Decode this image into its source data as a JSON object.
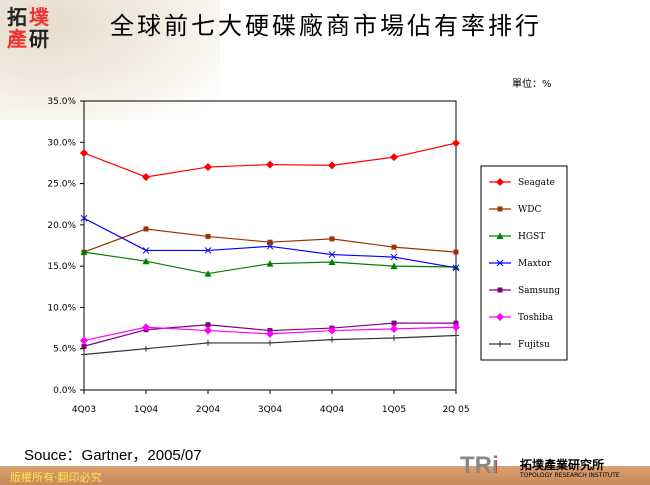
{
  "header": {
    "title": "全球前七大硬碟廠商市場佔有率排行",
    "unit": "單位：%",
    "logo": "拓墣產研"
  },
  "footer": {
    "source": "Souce：Gartner，2005/07",
    "copyright": "版權所有‧翻印必究",
    "brand_abbr": "TRi",
    "brand_name": "拓墣產業研究所",
    "brand_en": "TOPOLOGY RESEARCH INSTITUTE"
  },
  "chart_data": {
    "type": "line",
    "categories": [
      "4Q03",
      "1Q04",
      "2Q04",
      "3Q04",
      "4Q04",
      "1Q05",
      "2Q 05"
    ],
    "ylim": [
      0,
      35
    ],
    "yticks": [
      "0.0%",
      "5.0%",
      "10.0%",
      "15.0%",
      "20.0%",
      "25.0%",
      "30.0%",
      "35.0%"
    ],
    "legend": "right",
    "grid": false,
    "series": [
      {
        "name": "Seagate",
        "color": "#ff0000",
        "marker": "diamond",
        "values": [
          28.7,
          25.8,
          27.0,
          27.3,
          27.2,
          28.2,
          29.9
        ]
      },
      {
        "name": "WDC",
        "color": "#993300",
        "marker": "square",
        "values": [
          16.7,
          19.5,
          18.6,
          17.9,
          18.3,
          17.3,
          16.7
        ]
      },
      {
        "name": "HGST",
        "color": "#008000",
        "marker": "triangle",
        "values": [
          16.7,
          15.6,
          14.1,
          15.3,
          15.5,
          15.0,
          14.9
        ]
      },
      {
        "name": "Maxtor",
        "color": "#0000ff",
        "marker": "cross",
        "values": [
          20.8,
          16.9,
          16.9,
          17.4,
          16.4,
          16.1,
          14.8
        ]
      },
      {
        "name": "Samsung",
        "color": "#800080",
        "marker": "square",
        "values": [
          5.3,
          7.3,
          7.9,
          7.2,
          7.5,
          8.1,
          8.1
        ]
      },
      {
        "name": "Toshiba",
        "color": "#ff00ff",
        "marker": "diamond",
        "values": [
          6.0,
          7.6,
          7.2,
          6.8,
          7.2,
          7.4,
          7.6
        ]
      },
      {
        "name": "Fujitsu",
        "color": "#333333",
        "marker": "plus",
        "values": [
          4.3,
          5.0,
          5.7,
          5.7,
          6.1,
          6.3,
          6.6
        ]
      }
    ]
  }
}
